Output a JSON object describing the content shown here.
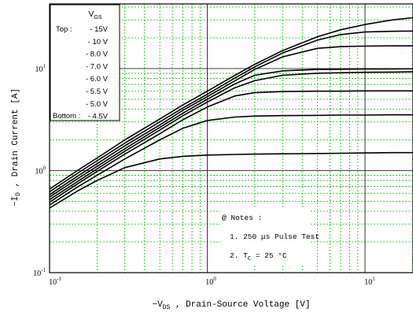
{
  "chart_data": {
    "type": "line",
    "x_scale": "log",
    "y_scale": "log",
    "xlim": [
      0.1,
      20
    ],
    "ylim": [
      0.1,
      30
    ],
    "grid": true,
    "xlabel_pre": "−V",
    "xlabel_sub": "DS",
    "xlabel_post": " , Drain-Source Voltage   [V]",
    "ylabel_pre": "−I",
    "ylabel_sub": "D",
    "ylabel_post": " ,  Drain Current   [A]",
    "x_ticks": [
      {
        "base": "10",
        "exp": "-1",
        "value": 0.1
      },
      {
        "base": "10",
        "exp": "0",
        "value": 1
      },
      {
        "base": "10",
        "exp": "1",
        "value": 10
      }
    ],
    "y_ticks": [
      {
        "base": "10",
        "exp": "-1",
        "value": 0.1
      },
      {
        "base": "10",
        "exp": "0",
        "value": 1
      },
      {
        "base": "10",
        "exp": "1",
        "value": 10
      }
    ],
    "x": [
      0.1,
      0.15,
      0.2,
      0.3,
      0.5,
      0.7,
      1,
      1.5,
      2,
      3,
      5,
      7,
      10,
      15,
      20
    ],
    "series": [
      {
        "name": "- 15V",
        "values": [
          0.66,
          1.0,
          1.33,
          2.0,
          3.2,
          4.4,
          6.0,
          8.6,
          11.0,
          15.0,
          20.5,
          24.0,
          27.0,
          30.0,
          31.5
        ]
      },
      {
        "name": "- 10 V",
        "values": [
          0.62,
          0.94,
          1.25,
          1.86,
          3.0,
          4.1,
          5.6,
          8.1,
          10.4,
          14.2,
          19.0,
          21.5,
          22.8,
          23.2,
          23.3
        ]
      },
      {
        "name": "- 8.0 V",
        "values": [
          0.58,
          0.88,
          1.17,
          1.75,
          2.8,
          3.9,
          5.3,
          7.6,
          9.8,
          13.0,
          15.8,
          16.4,
          16.6,
          16.7,
          16.7
        ]
      },
      {
        "name": "- 7.0 V",
        "values": [
          0.55,
          0.83,
          1.1,
          1.64,
          2.65,
          3.65,
          5.0,
          7.1,
          8.6,
          9.5,
          9.8,
          9.85,
          9.9,
          9.9,
          9.95
        ]
      },
      {
        "name": "- 6.0 V",
        "values": [
          0.52,
          0.78,
          1.04,
          1.55,
          2.5,
          3.45,
          4.7,
          6.5,
          7.6,
          8.6,
          9.0,
          9.1,
          9.2,
          9.25,
          9.3
        ]
      },
      {
        "name": "- 5.5 V",
        "values": [
          0.49,
          0.74,
          0.98,
          1.45,
          2.3,
          3.15,
          4.2,
          5.4,
          5.8,
          5.95,
          6.0,
          6.0,
          6.05,
          6.05,
          6.05
        ]
      },
      {
        "name": "- 5.0 V",
        "values": [
          0.46,
          0.69,
          0.9,
          1.3,
          2.0,
          2.6,
          3.1,
          3.35,
          3.42,
          3.46,
          3.48,
          3.5,
          3.5,
          3.52,
          3.52
        ]
      },
      {
        "name": "- 4.5V",
        "values": [
          0.43,
          0.63,
          0.8,
          1.07,
          1.3,
          1.38,
          1.42,
          1.44,
          1.45,
          1.46,
          1.47,
          1.48,
          1.49,
          1.5,
          1.5
        ]
      }
    ],
    "legend": {
      "title_base": "V",
      "title_sub": "GS",
      "top_label": "Top :",
      "bottom_label": "Bottom :",
      "placement": "top-left"
    },
    "notes": {
      "heading": "@ Notes :",
      "line1": "1. 250 μs Pulse Test",
      "line2_pre": "2. T",
      "line2_sub": "C",
      "line2_post": " = 25 °C"
    },
    "colors": {
      "grid_minor": "#00c800",
      "grid_major": "#000000",
      "curve": "#000000",
      "frame": "#000000"
    }
  }
}
